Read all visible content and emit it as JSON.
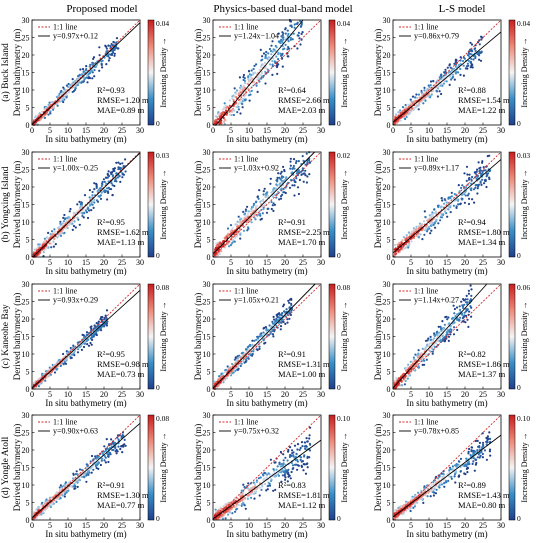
{
  "column_titles": [
    "Proposed model",
    "Physics-based dual-band model",
    "L-S model"
  ],
  "row_labels": [
    "(a) Buck Island",
    "(b) Yongxing Island",
    "(c) Kaneohe Bay",
    "(d) Yongle Atoll"
  ],
  "xlabel": "In situ bathymetry (m)",
  "ylabel": "Derived bathymetry (m)",
  "colorbar_label": "Increasing Density →",
  "legend_identity": "1:1 line",
  "colors": {
    "identity_line": "#d62728",
    "fit_line": "#000000",
    "low_density": "#1f3f8a",
    "high_density": "#c81e1e"
  },
  "chart_data": [
    {
      "type": "scatter",
      "row": "(a) Buck Island",
      "model": "Proposed model",
      "fit_label": "y=0.97x+0.12",
      "slope": 0.97,
      "intercept": 0.12,
      "r2": "R²=0.93",
      "rmse": "RMSE=1.20 m",
      "mae": "MAE=0.89 m",
      "cbar_max": "0.04",
      "cbar_ticks": [
        "0",
        "0.04"
      ],
      "xlim": [
        0,
        30
      ],
      "ylim": [
        0,
        30
      ],
      "xticks": [
        "0",
        "5",
        "10",
        "15",
        "20",
        "25",
        "30"
      ],
      "yticks": [
        "0",
        "5",
        "10",
        "15",
        "20",
        "25",
        "30"
      ],
      "spread": 1.2,
      "xmax_data": 24
    },
    {
      "type": "scatter",
      "row": "(a) Buck Island",
      "model": "Physics-based dual-band model",
      "fit_label": "y=1.24x−1.04",
      "slope": 1.24,
      "intercept": -1.04,
      "r2": "R²=0.64",
      "rmse": "RMSE=2.66 m",
      "mae": "MAE=2.03 m",
      "cbar_max": "0.04",
      "cbar_ticks": [
        "0",
        "0.04"
      ],
      "xlim": [
        0,
        30
      ],
      "ylim": [
        0,
        30
      ],
      "xticks": [
        "0",
        "5",
        "10",
        "15",
        "20",
        "25",
        "30"
      ],
      "yticks": [
        "0",
        "5",
        "10",
        "15",
        "20",
        "25",
        "30"
      ],
      "spread": 2.6,
      "xmax_data": 25
    },
    {
      "type": "scatter",
      "row": "(a) Buck Island",
      "model": "L-S model",
      "fit_label": "y=0.86x+0.79",
      "slope": 0.86,
      "intercept": 0.79,
      "r2": "R²=0.88",
      "rmse": "RMSE=1.54 m",
      "mae": "MAE=1.22 m",
      "cbar_max": "0.04",
      "cbar_ticks": [
        "0",
        "0.04"
      ],
      "xlim": [
        0,
        30
      ],
      "ylim": [
        0,
        30
      ],
      "xticks": [
        "0",
        "5",
        "10",
        "15",
        "20",
        "25",
        "30"
      ],
      "yticks": [
        "0",
        "5",
        "10",
        "15",
        "20",
        "25",
        "30"
      ],
      "spread": 1.5,
      "xmax_data": 25
    },
    {
      "type": "scatter",
      "row": "(b) Yongxing Island",
      "model": "Proposed model",
      "fit_label": "y=1.00x−0.25",
      "slope": 1.0,
      "intercept": -0.25,
      "r2": "R²=0.95",
      "rmse": "RMSE=1.62 m",
      "mae": "MAE=1.13 m",
      "cbar_max": "0.03",
      "cbar_ticks": [
        "0",
        "0.03"
      ],
      "xlim": [
        0,
        30
      ],
      "ylim": [
        0,
        30
      ],
      "xticks": [
        "0",
        "5",
        "10",
        "15",
        "20",
        "25",
        "30"
      ],
      "yticks": [
        "0",
        "5",
        "10",
        "15",
        "20",
        "25",
        "30"
      ],
      "spread": 1.6,
      "xmax_data": 26
    },
    {
      "type": "scatter",
      "row": "(b) Yongxing Island",
      "model": "Physics-based dual-band model",
      "fit_label": "y=1.03x+0.92",
      "slope": 1.03,
      "intercept": 0.92,
      "r2": "R²=0.91",
      "rmse": "RMSE=2.25 m",
      "mae": "MAE=1.70 m",
      "cbar_max": "0.02",
      "cbar_ticks": [
        "0",
        "0.02"
      ],
      "xlim": [
        0,
        30
      ],
      "ylim": [
        0,
        30
      ],
      "xticks": [
        "0",
        "5",
        "10",
        "15",
        "20",
        "25",
        "30"
      ],
      "yticks": [
        "0",
        "5",
        "10",
        "15",
        "20",
        "25",
        "30"
      ],
      "spread": 2.2,
      "xmax_data": 27
    },
    {
      "type": "scatter",
      "row": "(b) Yongxing Island",
      "model": "L-S model",
      "fit_label": "y=0.89x+1.17",
      "slope": 0.89,
      "intercept": 1.17,
      "r2": "R²=0.94",
      "rmse": "RMSE=1.80 m",
      "mae": "MAE=1.34 m",
      "cbar_max": "0.03",
      "cbar_ticks": [
        "0",
        "0.03"
      ],
      "xlim": [
        0,
        30
      ],
      "ylim": [
        0,
        30
      ],
      "xticks": [
        "0",
        "5",
        "10",
        "15",
        "20",
        "25",
        "30"
      ],
      "yticks": [
        "0",
        "5",
        "10",
        "15",
        "20",
        "25",
        "30"
      ],
      "spread": 1.8,
      "xmax_data": 27
    },
    {
      "type": "scatter",
      "row": "(c) Kaneohe Bay",
      "model": "Proposed model",
      "fit_label": "y=0.93x+0.29",
      "slope": 0.93,
      "intercept": 0.29,
      "r2": "R²=0.95",
      "rmse": "RMSE=0.98 m",
      "mae": "MAE=0.73 m",
      "cbar_max": "0.08",
      "cbar_ticks": [
        "0",
        "0.08"
      ],
      "xlim": [
        0,
        30
      ],
      "ylim": [
        0,
        30
      ],
      "xticks": [
        "0",
        "5",
        "10",
        "15",
        "20",
        "25",
        "30"
      ],
      "yticks": [
        "0",
        "5",
        "10",
        "15",
        "20",
        "25",
        "30"
      ],
      "spread": 1.0,
      "xmax_data": 21
    },
    {
      "type": "scatter",
      "row": "(c) Kaneohe Bay",
      "model": "Physics-based dual-band model",
      "fit_label": "y=1.05x+0.21",
      "slope": 1.05,
      "intercept": 0.21,
      "r2": "R²=0.91",
      "rmse": "RMSE=1.31 m",
      "mae": "MAE=1.00 m",
      "cbar_max": "0.08",
      "cbar_ticks": [
        "0",
        "0.08"
      ],
      "xlim": [
        0,
        30
      ],
      "ylim": [
        0,
        30
      ],
      "xticks": [
        "0",
        "5",
        "10",
        "15",
        "20",
        "25",
        "30"
      ],
      "yticks": [
        "0",
        "5",
        "10",
        "15",
        "20",
        "25",
        "30"
      ],
      "spread": 1.3,
      "xmax_data": 22
    },
    {
      "type": "scatter",
      "row": "(c) Kaneohe Bay",
      "model": "L-S model",
      "fit_label": "y=1.14x+0.27",
      "slope": 1.14,
      "intercept": 0.27,
      "r2": "R²=0.82",
      "rmse": "RMSE=1.86 m",
      "mae": "MAE=1.37 m",
      "cbar_max": "0.06",
      "cbar_ticks": [
        "0",
        "0.06"
      ],
      "xlim": [
        0,
        30
      ],
      "ylim": [
        0,
        30
      ],
      "xticks": [
        "0",
        "5",
        "10",
        "15",
        "20",
        "25",
        "30"
      ],
      "yticks": [
        "0",
        "5",
        "10",
        "15",
        "20",
        "25",
        "30"
      ],
      "spread": 1.8,
      "xmax_data": 22
    },
    {
      "type": "scatter",
      "row": "(d) Yongle Atoll",
      "model": "Proposed model",
      "fit_label": "y=0.90x+0.63",
      "slope": 0.9,
      "intercept": 0.63,
      "r2": "R²=0.91",
      "rmse": "RMSE=1.30 m",
      "mae": "MAE=0.77 m",
      "cbar_max": "0.08",
      "cbar_ticks": [
        "0",
        "0.08"
      ],
      "xlim": [
        0,
        30
      ],
      "ylim": [
        0,
        30
      ],
      "xticks": [
        "0",
        "5",
        "10",
        "15",
        "20",
        "25",
        "30"
      ],
      "yticks": [
        "0",
        "5",
        "10",
        "15",
        "20",
        "25",
        "30"
      ],
      "spread": 1.3,
      "xmax_data": 26
    },
    {
      "type": "scatter",
      "row": "(d) Yongle Atoll",
      "model": "Physics-based dual-band model",
      "fit_label": "y=0.75x+0.32",
      "slope": 0.75,
      "intercept": 0.32,
      "r2": "R²=0.83",
      "rmse": "RMSE=1.81 m",
      "mae": "MAE=1.12 m",
      "cbar_max": "0.10",
      "cbar_ticks": [
        "0",
        "0.10"
      ],
      "xlim": [
        0,
        30
      ],
      "ylim": [
        0,
        30
      ],
      "xticks": [
        "0",
        "5",
        "10",
        "15",
        "20",
        "25",
        "30"
      ],
      "yticks": [
        "0",
        "5",
        "10",
        "15",
        "20",
        "25",
        "30"
      ],
      "spread": 1.8,
      "xmax_data": 27
    },
    {
      "type": "scatter",
      "row": "(d) Yongle Atoll",
      "model": "L-S model",
      "fit_label": "y=0.78x+0.85",
      "slope": 0.78,
      "intercept": 0.85,
      "r2": "R²=0.89",
      "rmse": "RMSE=1.43 m",
      "mae": "MAE=0.80 m",
      "cbar_max": "0.10",
      "cbar_ticks": [
        "0",
        "0.10"
      ],
      "xlim": [
        0,
        30
      ],
      "ylim": [
        0,
        30
      ],
      "xticks": [
        "0",
        "5",
        "10",
        "15",
        "20",
        "25",
        "30"
      ],
      "yticks": [
        "0",
        "5",
        "10",
        "15",
        "20",
        "25",
        "30"
      ],
      "spread": 1.4,
      "xmax_data": 27
    }
  ]
}
